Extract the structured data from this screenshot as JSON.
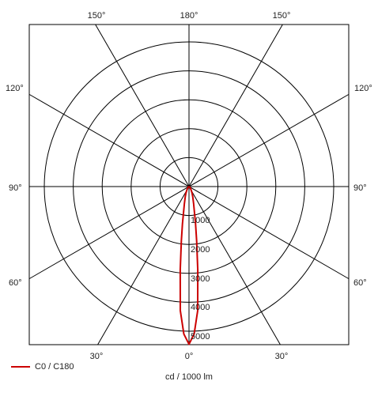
{
  "chart_data": {
    "type": "polar",
    "unit_label": "cd / 1000 lm",
    "radial_max": 5500,
    "radial_ticks": [
      1000,
      2000,
      3000,
      4000,
      5000
    ],
    "radial_tick_labels": [
      "1000",
      "2000",
      "3000",
      "4000",
      "5000"
    ],
    "angle_labels": {
      "top": [
        "150°",
        "180°",
        "150°"
      ],
      "left": [
        "120°",
        "90°",
        "60°"
      ],
      "right": [
        "120°",
        "90°",
        "60°"
      ],
      "bottom": [
        "30°",
        "0°",
        "30°"
      ]
    },
    "series": [
      {
        "name": "C0 / C180",
        "color": "#cc0000",
        "angles": [
          0,
          2,
          4,
          6,
          8,
          10,
          12,
          15,
          20,
          25,
          30,
          40,
          60,
          90
        ],
        "values": [
          5450,
          5100,
          4300,
          2900,
          1900,
          1300,
          900,
          620,
          380,
          250,
          160,
          80,
          30,
          0
        ]
      }
    ]
  }
}
